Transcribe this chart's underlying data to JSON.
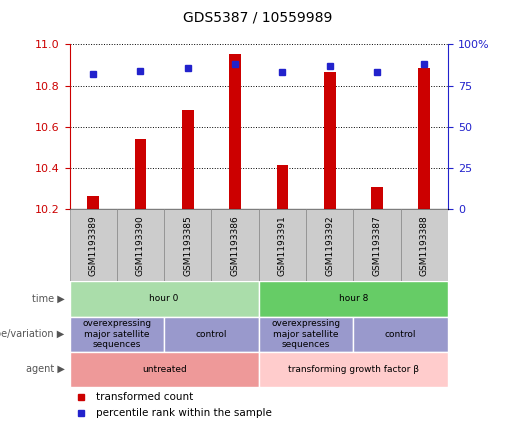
{
  "title": "GDS5387 / 10559989",
  "samples": [
    "GSM1193389",
    "GSM1193390",
    "GSM1193385",
    "GSM1193386",
    "GSM1193391",
    "GSM1193392",
    "GSM1193387",
    "GSM1193388"
  ],
  "transformed_counts": [
    10.265,
    10.54,
    10.68,
    10.955,
    10.415,
    10.865,
    10.31,
    10.885
  ],
  "percentile_ranks": [
    82,
    84,
    86,
    88,
    83,
    87,
    83,
    88
  ],
  "ylim_left": [
    10.2,
    11.0
  ],
  "ylim_right": [
    0,
    100
  ],
  "yticks_left": [
    10.2,
    10.4,
    10.6,
    10.8,
    11.0
  ],
  "yticks_right": [
    0,
    25,
    50,
    75,
    100
  ],
  "bar_color": "#cc0000",
  "dot_color": "#2222cc",
  "bar_bottom": 10.2,
  "bar_width": 0.25,
  "left_color": "#cc0000",
  "right_color": "#2222cc",
  "annotation_rows": [
    {
      "label": "time",
      "groups": [
        {
          "text": "hour 0",
          "start": 0,
          "end": 3,
          "color": "#aaddaa"
        },
        {
          "text": "hour 8",
          "start": 4,
          "end": 7,
          "color": "#66cc66"
        }
      ]
    },
    {
      "label": "genotype/variation",
      "groups": [
        {
          "text": "overexpressing\nmajor satellite\nsequences",
          "start": 0,
          "end": 1,
          "color": "#9999cc"
        },
        {
          "text": "control",
          "start": 2,
          "end": 3,
          "color": "#9999cc"
        },
        {
          "text": "overexpressing\nmajor satellite\nsequences",
          "start": 4,
          "end": 5,
          "color": "#9999cc"
        },
        {
          "text": "control",
          "start": 6,
          "end": 7,
          "color": "#9999cc"
        }
      ]
    },
    {
      "label": "agent",
      "groups": [
        {
          "text": "untreated",
          "start": 0,
          "end": 3,
          "color": "#ee9999"
        },
        {
          "text": "transforming growth factor β",
          "start": 4,
          "end": 7,
          "color": "#ffcccc"
        }
      ]
    }
  ],
  "legend_items": [
    {
      "label": "transformed count",
      "color": "#cc0000"
    },
    {
      "label": "percentile rank within the sample",
      "color": "#2222cc"
    }
  ],
  "sample_box_color": "#cccccc",
  "sample_box_edge": "#888888"
}
